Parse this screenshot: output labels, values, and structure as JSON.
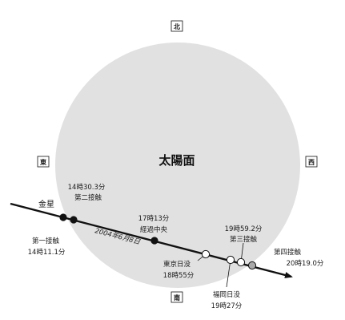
{
  "colors": {
    "sun_disk": "#e1e1e1",
    "track": "#111111",
    "filled_dot": "#111111",
    "open_dot": "#ffffff",
    "gray_dot": "#a9a9a9"
  },
  "diagram": {
    "sun_label": "太陽面",
    "planet_label": "金星",
    "date_label": "2004年6月8日",
    "directions": {
      "north": "北",
      "south": "南",
      "east": "東",
      "west": "西"
    },
    "events": {
      "first_contact": {
        "name": "第一接触",
        "time": "14時11.1分"
      },
      "second_contact": {
        "time": "14時30.3分",
        "name": "第二接触"
      },
      "mid_transit": {
        "time": "17時13分",
        "name": "経過中央"
      },
      "tokyo_sunset": {
        "name": "東京日没",
        "time": "18時55分"
      },
      "fukuoka_sunset": {
        "name": "福岡日没",
        "time": "19時27分"
      },
      "third_contact": {
        "time": "19時59.2分",
        "name": "第三接触"
      },
      "fourth_contact": {
        "name": "第四接触",
        "time": "20時19.0分"
      }
    }
  }
}
